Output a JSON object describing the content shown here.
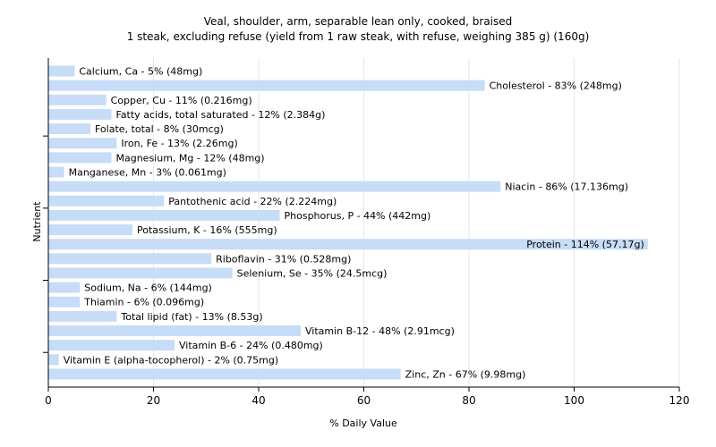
{
  "chart_data": {
    "type": "bar",
    "orientation": "horizontal",
    "title": "Veal, shoulder, arm, separable lean only, cooked, braised",
    "subtitle": "1 steak, excluding refuse (yield from 1 raw steak, with refuse, weighing 385 g) (160g)",
    "xlabel": "% Daily Value",
    "ylabel": "Nutrient",
    "xlim": [
      0,
      120
    ],
    "xticks": [
      "0",
      "20",
      "40",
      "60",
      "80",
      "100",
      "120"
    ],
    "grid": true,
    "bar_color": "#c6dcf7",
    "bars": [
      {
        "value": 5,
        "label": "Calcium, Ca - 5% (48mg)"
      },
      {
        "value": 83,
        "label": "Cholesterol - 83% (248mg)"
      },
      {
        "value": 11,
        "label": "Copper, Cu - 11% (0.216mg)"
      },
      {
        "value": 12,
        "label": "Fatty acids, total saturated - 12% (2.384g)"
      },
      {
        "value": 8,
        "label": "Folate, total - 8% (30mcg)"
      },
      {
        "value": 13,
        "label": "Iron, Fe - 13% (2.26mg)"
      },
      {
        "value": 12,
        "label": "Magnesium, Mg - 12% (48mg)"
      },
      {
        "value": 3,
        "label": "Manganese, Mn - 3% (0.061mg)"
      },
      {
        "value": 86,
        "label": "Niacin - 86% (17.136mg)"
      },
      {
        "value": 22,
        "label": "Pantothenic acid - 22% (2.224mg)"
      },
      {
        "value": 44,
        "label": "Phosphorus, P - 44% (442mg)"
      },
      {
        "value": 16,
        "label": "Potassium, K - 16% (555mg)"
      },
      {
        "value": 114,
        "label": "Protein - 114% (57.17g)"
      },
      {
        "value": 31,
        "label": "Riboflavin - 31% (0.528mg)"
      },
      {
        "value": 35,
        "label": "Selenium, Se - 35% (24.5mcg)"
      },
      {
        "value": 6,
        "label": "Sodium, Na - 6% (144mg)"
      },
      {
        "value": 6,
        "label": "Thiamin - 6% (0.096mg)"
      },
      {
        "value": 13,
        "label": "Total lipid (fat) - 13% (8.53g)"
      },
      {
        "value": 48,
        "label": "Vitamin B-12 - 48% (2.91mcg)"
      },
      {
        "value": 24,
        "label": "Vitamin B-6 - 24% (0.480mg)"
      },
      {
        "value": 2,
        "label": "Vitamin E (alpha-tocopherol) - 2% (0.75mg)"
      },
      {
        "value": 67,
        "label": "Zinc, Zn - 67% (9.98mg)"
      }
    ]
  }
}
